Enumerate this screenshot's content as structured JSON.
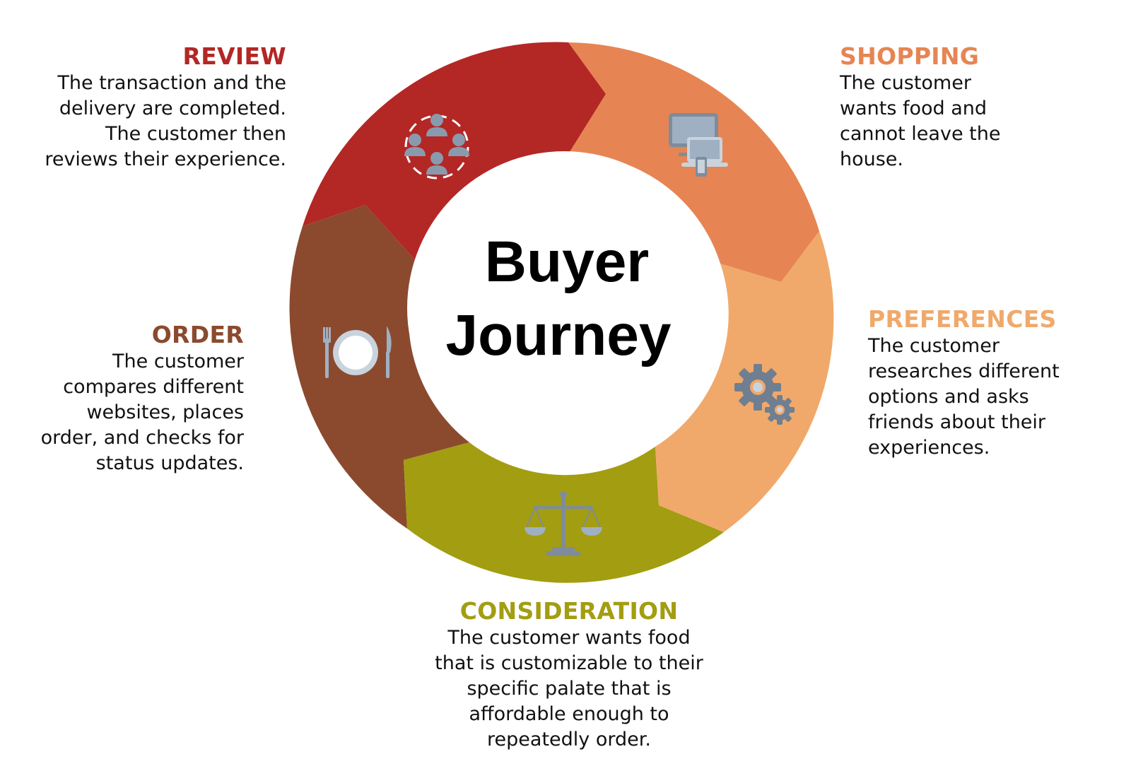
{
  "diagram": {
    "center_title": [
      "Buyer",
      "Journey"
    ],
    "stages": [
      {
        "id": "review",
        "heading": "REVIEW",
        "color": "#B32725",
        "icon": "people-network-icon",
        "lines": [
          "The transaction and the",
          "delivery are completed.",
          "The customer then",
          "reviews their experience."
        ]
      },
      {
        "id": "shopping",
        "heading": "SHOPPING",
        "color": "#E68553",
        "icon": "devices-icon",
        "lines": [
          "The customer",
          "wants food and",
          "cannot leave the",
          "house."
        ]
      },
      {
        "id": "preferences",
        "heading": "PREFERENCES",
        "color": "#F0A96B",
        "icon": "gears-icon",
        "lines": [
          "The customer",
          "researches different",
          "options and asks",
          "friends about their",
          "experiences."
        ]
      },
      {
        "id": "consideration",
        "heading": "CONSIDERATION",
        "color": "#A39D11",
        "icon": "scales-icon",
        "lines": [
          "The customer wants food",
          "that is customizable to their",
          "specific palate that is",
          "affordable enough to",
          "repeatedly order."
        ]
      },
      {
        "id": "order",
        "heading": "ORDER",
        "color": "#8B4A2E",
        "icon": "plate-cutlery-icon",
        "lines": [
          "The customer",
          "compares different",
          "websites, places",
          "order, and checks for",
          "status updates."
        ]
      }
    ]
  }
}
